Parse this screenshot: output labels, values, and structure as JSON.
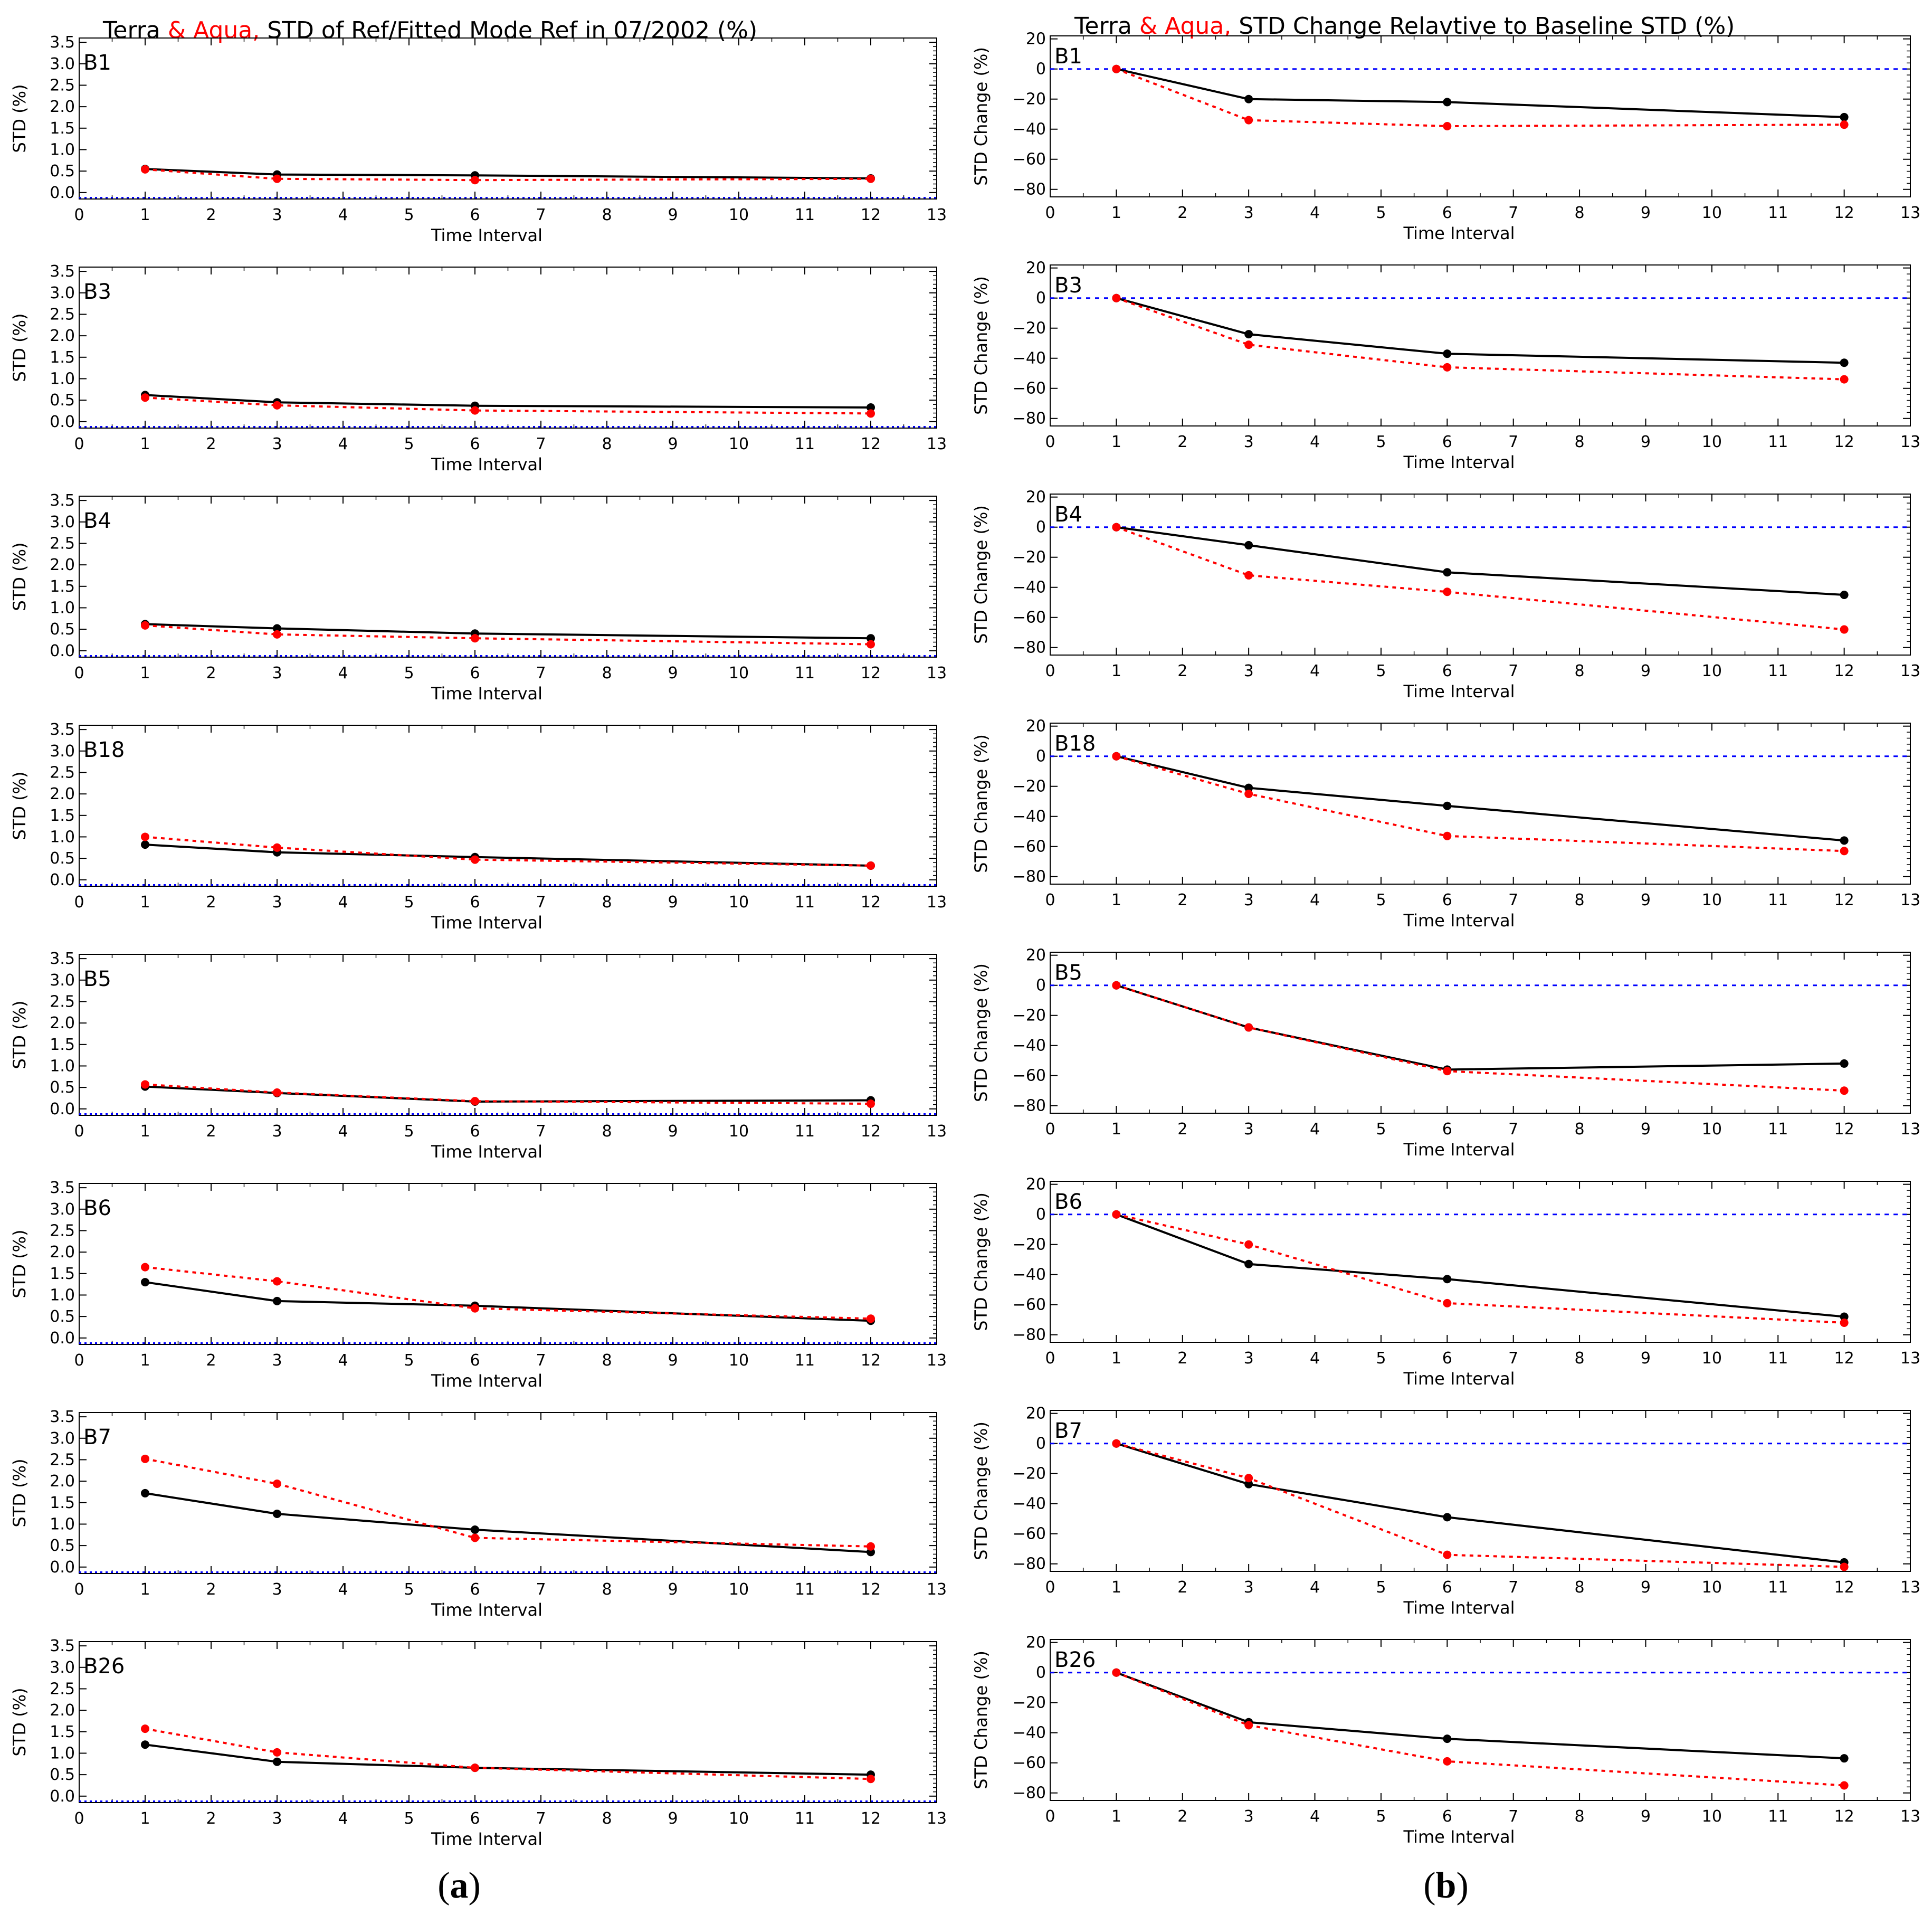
{
  "titles": {
    "left": {
      "part1": "Terra",
      "part2": " & Aqua,",
      "part3": " STD of Ref/Fitted Mode Ref in 07/2002 (%)"
    },
    "right": {
      "part1": "Terra",
      "part2": " & Aqua,",
      "part3": "  STD Change Relavtive to Baseline STD (%)"
    }
  },
  "captions": {
    "left": [
      "(",
      "a",
      ")"
    ],
    "right": [
      "(",
      "b",
      ")"
    ]
  },
  "colors": {
    "terra": "#000000",
    "aqua": "#ff0000",
    "baseline": "#0000ff"
  },
  "chart_data": [
    {
      "panel": "a",
      "type": "line",
      "xlabel": "Time Interval",
      "ylabel": "STD (%)",
      "xlim": [
        0,
        13
      ],
      "ylim": [
        -0.15,
        3.6
      ],
      "xticks": [
        "0",
        "1",
        "2",
        "3",
        "4",
        "5",
        "6",
        "7",
        "8",
        "9",
        "10",
        "11",
        "12",
        "13"
      ],
      "yticks": [
        "0.0",
        "0.5",
        "1.0",
        "1.5",
        "2.0",
        "2.5",
        "3.0",
        "3.5"
      ],
      "ytick_values": [
        0,
        0.5,
        1.0,
        1.5,
        2.0,
        2.5,
        3.0,
        3.5
      ],
      "baseline_y": -0.12,
      "x": [
        1,
        3,
        6,
        12
      ],
      "panels": [
        {
          "label": "B1",
          "terra": [
            0.55,
            0.42,
            0.4,
            0.33
          ],
          "aqua": [
            0.54,
            0.32,
            0.29,
            0.32
          ]
        },
        {
          "label": "B3",
          "terra": [
            0.62,
            0.45,
            0.37,
            0.33
          ],
          "aqua": [
            0.56,
            0.38,
            0.26,
            0.19
          ]
        },
        {
          "label": "B4",
          "terra": [
            0.62,
            0.52,
            0.4,
            0.29
          ],
          "aqua": [
            0.59,
            0.38,
            0.29,
            0.15
          ]
        },
        {
          "label": "B18",
          "terra": [
            0.82,
            0.64,
            0.53,
            0.33
          ],
          "aqua": [
            1.0,
            0.75,
            0.47,
            0.33
          ]
        },
        {
          "label": "B5",
          "terra": [
            0.52,
            0.37,
            0.17,
            0.2
          ],
          "aqua": [
            0.57,
            0.38,
            0.18,
            0.12
          ]
        },
        {
          "label": "B6",
          "terra": [
            1.3,
            0.86,
            0.75,
            0.4
          ],
          "aqua": [
            1.65,
            1.32,
            0.69,
            0.45
          ]
        },
        {
          "label": "B7",
          "terra": [
            1.72,
            1.24,
            0.87,
            0.35
          ],
          "aqua": [
            2.52,
            1.94,
            0.68,
            0.48
          ]
        },
        {
          "label": "B26",
          "terra": [
            1.2,
            0.8,
            0.66,
            0.5
          ],
          "aqua": [
            1.57,
            1.02,
            0.66,
            0.4
          ]
        }
      ]
    },
    {
      "panel": "b",
      "type": "line",
      "xlabel": "Time Interval",
      "ylabel": "STD Change (%)",
      "xlim": [
        0,
        13
      ],
      "ylim": [
        -85,
        22
      ],
      "xticks": [
        "0",
        "1",
        "2",
        "3",
        "4",
        "5",
        "6",
        "7",
        "8",
        "9",
        "10",
        "11",
        "12",
        "13"
      ],
      "yticks": [
        "20",
        "0",
        "−20",
        "−40",
        "−60",
        "−80"
      ],
      "ytick_values": [
        20,
        0,
        -20,
        -40,
        -60,
        -80
      ],
      "baseline_y": 0,
      "x": [
        1,
        3,
        6,
        12
      ],
      "panels": [
        {
          "label": "B1",
          "terra": [
            0,
            -20,
            -22,
            -32
          ],
          "aqua": [
            0,
            -34,
            -38,
            -37
          ]
        },
        {
          "label": "B3",
          "terra": [
            0,
            -24,
            -37,
            -43
          ],
          "aqua": [
            0,
            -31,
            -46,
            -54
          ]
        },
        {
          "label": "B4",
          "terra": [
            0,
            -12,
            -30,
            -45
          ],
          "aqua": [
            0,
            -32,
            -43,
            -68
          ]
        },
        {
          "label": "B18",
          "terra": [
            0,
            -21,
            -33,
            -56
          ],
          "aqua": [
            0,
            -25,
            -53,
            -63
          ]
        },
        {
          "label": "B5",
          "terra": [
            0,
            -28,
            -56,
            -52
          ],
          "aqua": [
            0,
            -28,
            -57,
            -70
          ]
        },
        {
          "label": "B6",
          "terra": [
            0,
            -33,
            -43,
            -68
          ],
          "aqua": [
            0,
            -20,
            -59,
            -72
          ]
        },
        {
          "label": "B7",
          "terra": [
            0,
            -27,
            -49,
            -79
          ],
          "aqua": [
            0,
            -23,
            -74,
            -82
          ]
        },
        {
          "label": "B26",
          "terra": [
            0,
            -33,
            -44,
            -57
          ],
          "aqua": [
            0,
            -35,
            -59,
            -75
          ]
        }
      ]
    }
  ]
}
